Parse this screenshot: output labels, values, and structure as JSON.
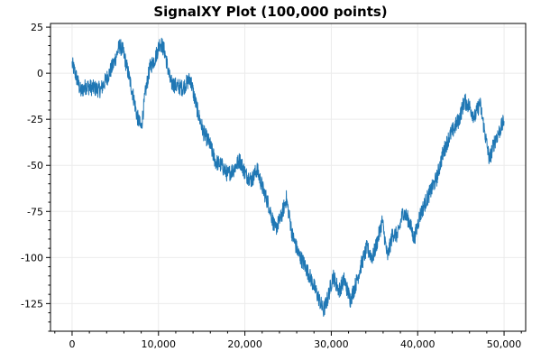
{
  "chart_data": {
    "type": "line",
    "title": "SignalXY Plot (100,000 points)",
    "xlabel": "",
    "ylabel": "",
    "xlim": [
      -2500,
      52500
    ],
    "ylim": [
      -140,
      27
    ],
    "grid": true,
    "legend": "none",
    "x_ticks": [
      0,
      10000,
      20000,
      30000,
      40000,
      50000
    ],
    "x_tick_labels": [
      "0",
      "10,000",
      "20,000",
      "30,000",
      "40,000",
      "50,000"
    ],
    "y_ticks": [
      25,
      0,
      -25,
      -50,
      -75,
      -100,
      -125
    ],
    "y_tick_labels": [
      "25",
      "0",
      "-25",
      "-50",
      "-75",
      "-100",
      "-125"
    ],
    "series": [
      {
        "color": "#1f77b4",
        "x": [
          0,
          300,
          1000,
          1600,
          2400,
          3300,
          4100,
          4800,
          5500,
          5900,
          6500,
          7200,
          7500,
          8000,
          8500,
          9000,
          9600,
          10200,
          10700,
          11400,
          12100,
          12800,
          13300,
          13700,
          14100,
          14600,
          15200,
          15900,
          16600,
          17300,
          18000,
          18700,
          19400,
          20100,
          20800,
          21400,
          22100,
          22800,
          23500,
          24200,
          24800,
          25500,
          26200,
          26800,
          27500,
          28200,
          28700,
          29100,
          29600,
          30200,
          30900,
          31500,
          32200,
          32800,
          33400,
          34100,
          34800,
          35400,
          35900,
          36500,
          37100,
          37700,
          38300,
          39000,
          39600,
          40200,
          40900,
          41600,
          42200,
          42900,
          43600,
          44200,
          44800,
          45400,
          46000,
          46600,
          47200,
          47800,
          48300,
          48900,
          49500,
          50000
        ],
        "y": [
          5,
          1,
          -10,
          -7,
          -8,
          -9,
          -2,
          5,
          15,
          12,
          0,
          -15,
          -23,
          -30,
          -10,
          3,
          8,
          17,
          12,
          -5,
          -7,
          -8,
          -5,
          -3,
          -12,
          -22,
          -32,
          -38,
          -48,
          -50,
          -55,
          -52,
          -47,
          -55,
          -58,
          -52,
          -63,
          -72,
          -85,
          -78,
          -68,
          -88,
          -98,
          -103,
          -110,
          -118,
          -124,
          -129,
          -122,
          -110,
          -118,
          -112,
          -123,
          -115,
          -105,
          -95,
          -100,
          -90,
          -80,
          -100,
          -87,
          -88,
          -75,
          -80,
          -90,
          -78,
          -70,
          -63,
          -57,
          -44,
          -35,
          -30,
          -25,
          -15,
          -18,
          -24,
          -16,
          -33,
          -47,
          -37,
          -31,
          -26
        ]
      }
    ]
  }
}
